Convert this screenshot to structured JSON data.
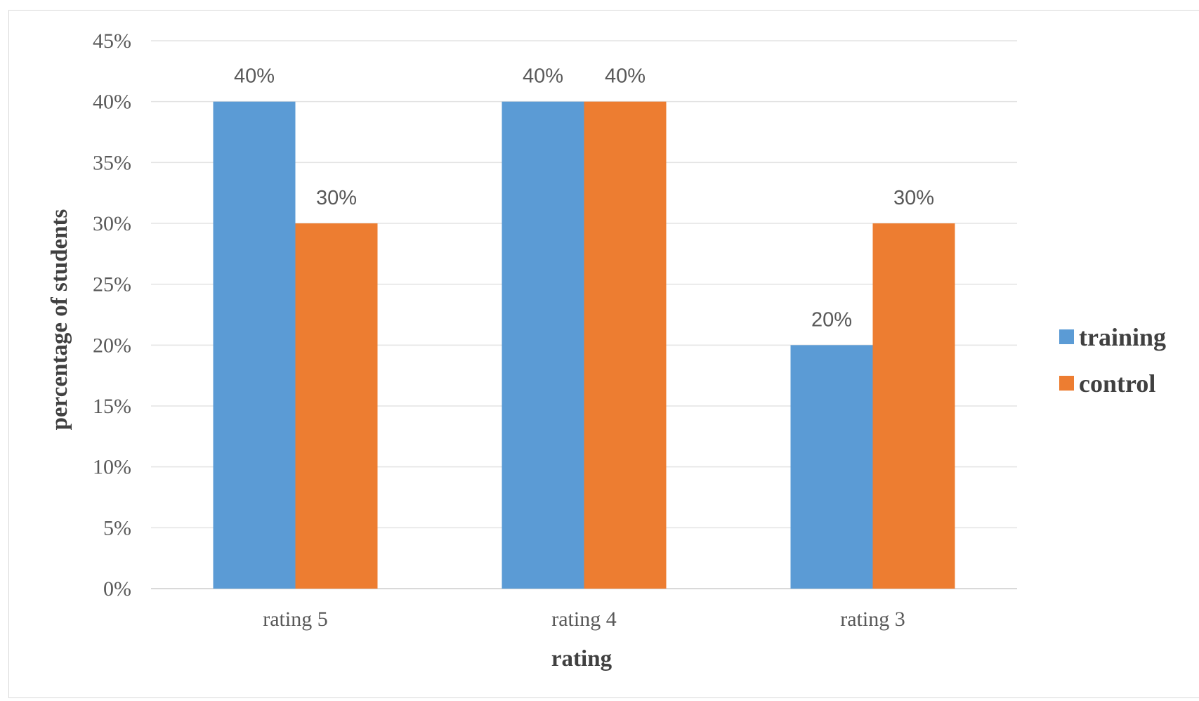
{
  "chart_data": {
    "type": "bar",
    "categories": [
      "rating 5",
      "rating 4",
      "rating 3"
    ],
    "series": [
      {
        "name": "training",
        "values": [
          40,
          40,
          20
        ],
        "color": "#5B9BD5"
      },
      {
        "name": "control",
        "values": [
          30,
          40,
          30
        ],
        "color": "#ED7D31"
      }
    ],
    "data_labels": [
      [
        "40%",
        "40%",
        "20%"
      ],
      [
        "30%",
        "40%",
        "30%"
      ]
    ],
    "xlabel": "rating",
    "ylabel": "percentage of students",
    "ylim": [
      0,
      45
    ],
    "yticks": [
      0,
      5,
      10,
      15,
      20,
      25,
      30,
      35,
      40,
      45
    ],
    "ytick_labels": [
      "0%",
      "5%",
      "10%",
      "15%",
      "20%",
      "25%",
      "30%",
      "35%",
      "40%",
      "45%"
    ],
    "grid": true,
    "legend_position": "right"
  }
}
